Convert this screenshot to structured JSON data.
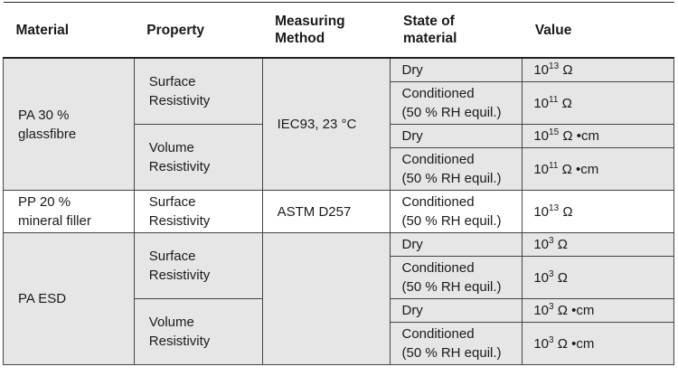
{
  "table": {
    "header": [
      "Material",
      "Property",
      "Measuring\nMethod",
      "State of\nmaterial",
      "Value"
    ],
    "groups": [
      {
        "material": "PA 30 %\nglassfibre",
        "method": "IEC93, 23 °C",
        "properties": [
          {
            "name": "Surface\nResistivity",
            "states": [
              {
                "state": "Dry",
                "value": {
                  "base": "10",
                  "exp": "13",
                  "unit": "Ω"
                }
              },
              {
                "state": "Conditioned\n(50 % RH equil.)",
                "value": {
                  "base": "10",
                  "exp": "11",
                  "unit": "Ω"
                }
              }
            ]
          },
          {
            "name": "Volume\nResistivity",
            "states": [
              {
                "state": "Dry",
                "value": {
                  "base": "10",
                  "exp": "15",
                  "unit": "Ω •cm"
                }
              },
              {
                "state": "Conditioned\n(50 % RH equil.)",
                "value": {
                  "base": "10",
                  "exp": "11",
                  "unit": "Ω •cm"
                }
              }
            ]
          }
        ]
      },
      {
        "material": "PP 20 %\nmineral filler",
        "method": "ASTM D257",
        "properties": [
          {
            "name": "Surface\nResistivity",
            "states": [
              {
                "state": "Conditioned\n(50 % RH equil.)",
                "value": {
                  "base": "10",
                  "exp": "13",
                  "unit": "Ω"
                }
              }
            ]
          }
        ]
      },
      {
        "material": "PA ESD",
        "properties": [
          {
            "name": "Surface\nResistivity",
            "states": [
              {
                "state": "Dry",
                "value": {
                  "base": "10",
                  "exp": "3",
                  "unit": "Ω"
                }
              },
              {
                "state": "Conditioned\n(50 % RH equil.)",
                "value": {
                  "base": "10",
                  "exp": "3",
                  "unit": "Ω"
                }
              }
            ]
          },
          {
            "name": "Volume\nResistivity",
            "states": [
              {
                "state": "Dry",
                "value": {
                  "base": "10",
                  "exp": "3",
                  "unit": "Ω •cm"
                }
              },
              {
                "state": "Conditioned\n(50 % RH equil.)",
                "value": {
                  "base": "10",
                  "exp": "3",
                  "unit": "Ω •cm"
                }
              }
            ]
          }
        ]
      }
    ]
  }
}
